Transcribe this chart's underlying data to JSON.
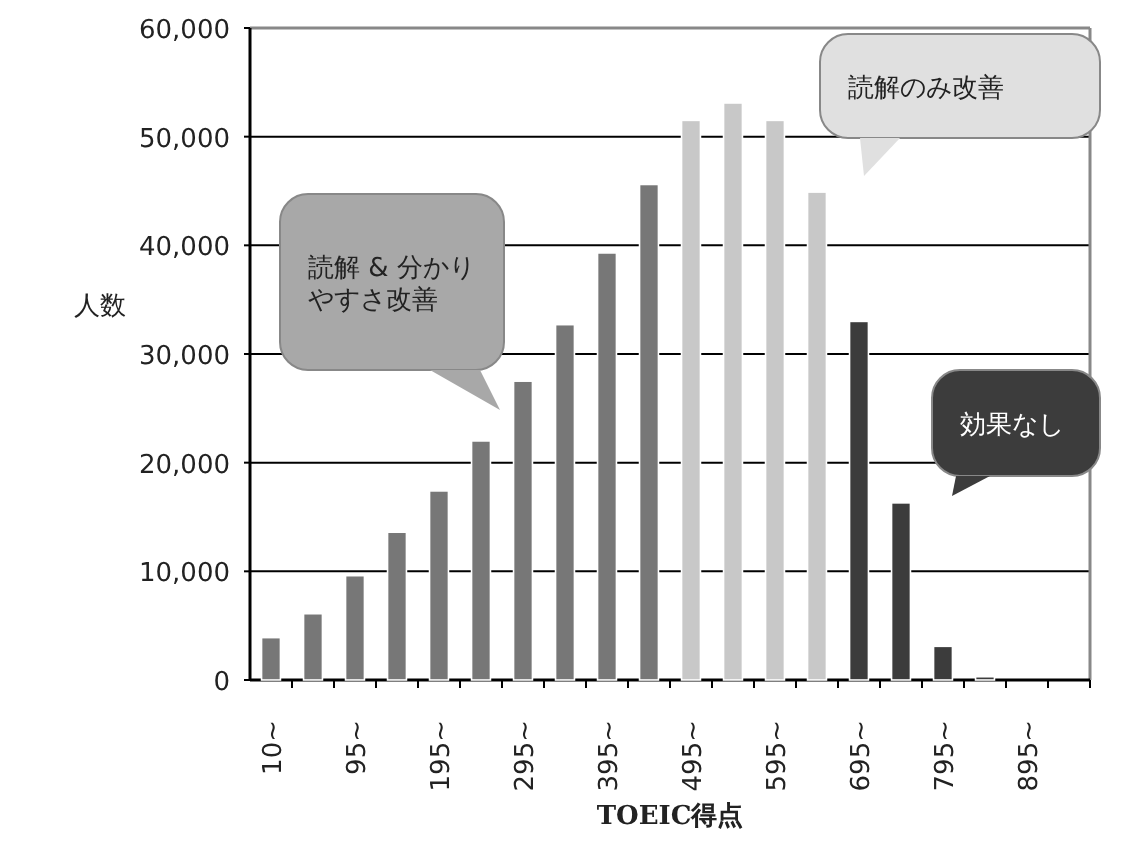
{
  "chart_data": {
    "type": "bar",
    "categories": [
      "10~",
      null,
      "95~",
      null,
      "195~",
      null,
      "295~",
      null,
      "395~",
      null,
      "495~",
      null,
      "595~",
      null,
      "695~",
      null,
      "795~",
      null,
      "895~",
      null
    ],
    "values": [
      3900,
      6100,
      9600,
      13600,
      17400,
      22000,
      27500,
      32700,
      39300,
      45600,
      51500,
      53100,
      51500,
      44900,
      33000,
      16300,
      3100,
      300,
      null,
      null
    ],
    "colors": [
      "#777777",
      "#777777",
      "#777777",
      "#777777",
      "#777777",
      "#777777",
      "#777777",
      "#777777",
      "#777777",
      "#777777",
      "#c8c8c8",
      "#c8c8c8",
      "#c8c8c8",
      "#c8c8c8",
      "#3c3c3c",
      "#3c3c3c",
      "#3c3c3c",
      "#3c3c3c",
      null,
      null
    ],
    "xlabel": "TOEIC得点",
    "ylabel": "人数",
    "ylim": [
      0,
      60000
    ],
    "yticks": [
      {
        "value": 0,
        "label": "0"
      },
      {
        "value": 10000,
        "label": "10,000"
      },
      {
        "value": 20000,
        "label": "20,000"
      },
      {
        "value": 30000,
        "label": "30,000"
      },
      {
        "value": 40000,
        "label": "40,000"
      },
      {
        "value": 50000,
        "label": "50,000"
      },
      {
        "value": 60000,
        "label": "60,000"
      }
    ],
    "grid": "y",
    "annotations": [
      "読解 & 分かりやすさ改善",
      "読解のみ改善",
      "効果なし"
    ]
  }
}
